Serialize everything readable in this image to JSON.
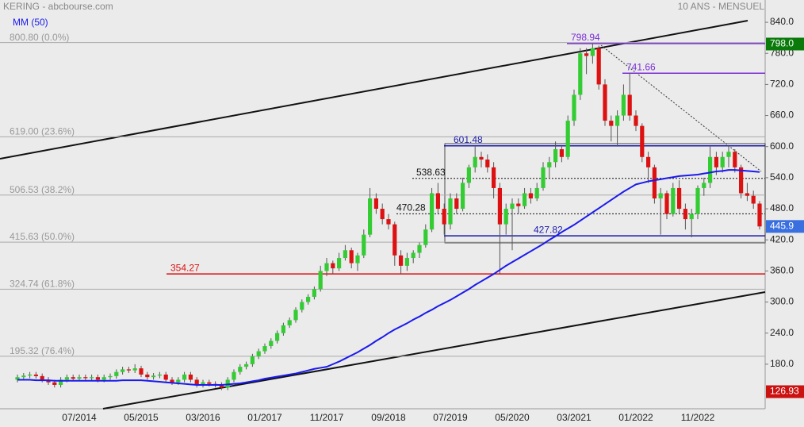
{
  "chart_data": {
    "type": "candlestick",
    "title": "KERING - abcbourse.com",
    "subtitle": "10 ANS - MENSUEL",
    "categories": [
      null,
      null,
      null,
      null,
      null,
      null,
      null,
      null,
      null,
      null,
      "07/2014",
      null,
      null,
      null,
      null,
      null,
      null,
      null,
      null,
      null,
      "05/2015",
      null,
      null,
      null,
      null,
      null,
      null,
      null,
      null,
      null,
      "03/2016",
      null,
      null,
      null,
      null,
      null,
      null,
      null,
      null,
      null,
      "01/2017",
      null,
      null,
      null,
      null,
      null,
      null,
      null,
      null,
      null,
      "11/2017",
      null,
      null,
      null,
      null,
      null,
      null,
      null,
      null,
      null,
      "09/2018",
      null,
      null,
      null,
      null,
      null,
      null,
      null,
      null,
      null,
      "07/2019",
      null,
      null,
      null,
      null,
      null,
      null,
      null,
      null,
      null,
      "05/2020",
      null,
      null,
      null,
      null,
      null,
      null,
      null,
      null,
      null,
      "03/2021",
      null,
      null,
      null,
      null,
      null,
      null,
      null,
      null,
      null,
      "01/2022",
      null,
      null,
      null,
      null,
      null,
      null,
      null,
      null,
      null,
      "11/2022",
      null,
      null,
      null,
      null,
      null,
      null,
      null,
      null,
      null,
      null
    ],
    "ohlc": [
      [
        150,
        160,
        145,
        155
      ],
      [
        155,
        163,
        150,
        158
      ],
      [
        158,
        165,
        153,
        160
      ],
      [
        160,
        165,
        152,
        157
      ],
      [
        157,
        162,
        145,
        150
      ],
      [
        150,
        155,
        140,
        145
      ],
      [
        145,
        150,
        135,
        140
      ],
      [
        140,
        155,
        135,
        150
      ],
      [
        150,
        160,
        145,
        155
      ],
      [
        155,
        160,
        147,
        152
      ],
      [
        152,
        160,
        147,
        155
      ],
      [
        155,
        160,
        148,
        153
      ],
      [
        153,
        160,
        148,
        155
      ],
      [
        155,
        160,
        145,
        150
      ],
      [
        150,
        160,
        145,
        155
      ],
      [
        155,
        162,
        150,
        157
      ],
      [
        157,
        170,
        152,
        165
      ],
      [
        165,
        175,
        160,
        170
      ],
      [
        170,
        175,
        163,
        168
      ],
      [
        168,
        180,
        163,
        172
      ],
      [
        172,
        177,
        155,
        160
      ],
      [
        160,
        165,
        150,
        155
      ],
      [
        155,
        163,
        150,
        158
      ],
      [
        158,
        165,
        153,
        160
      ],
      [
        160,
        165,
        145,
        150
      ],
      [
        150,
        155,
        140,
        145
      ],
      [
        145,
        155,
        140,
        150
      ],
      [
        150,
        165,
        145,
        160
      ],
      [
        160,
        165,
        145,
        150
      ],
      [
        150,
        155,
        135,
        140
      ],
      [
        140,
        150,
        135,
        145
      ],
      [
        145,
        150,
        137,
        142
      ],
      [
        142,
        147,
        135,
        140
      ],
      [
        140,
        145,
        130,
        135
      ],
      [
        135,
        155,
        130,
        150
      ],
      [
        150,
        170,
        145,
        165
      ],
      [
        165,
        180,
        160,
        175
      ],
      [
        175,
        185,
        170,
        180
      ],
      [
        180,
        200,
        175,
        195
      ],
      [
        195,
        210,
        190,
        205
      ],
      [
        205,
        220,
        200,
        215
      ],
      [
        215,
        230,
        210,
        225
      ],
      [
        225,
        245,
        220,
        240
      ],
      [
        240,
        260,
        235,
        255
      ],
      [
        255,
        270,
        250,
        265
      ],
      [
        265,
        290,
        260,
        285
      ],
      [
        285,
        305,
        280,
        300
      ],
      [
        300,
        315,
        295,
        310
      ],
      [
        310,
        330,
        305,
        325
      ],
      [
        325,
        370,
        320,
        360
      ],
      [
        360,
        385,
        350,
        375
      ],
      [
        375,
        380,
        355,
        365
      ],
      [
        365,
        395,
        360,
        385
      ],
      [
        385,
        410,
        380,
        400
      ],
      [
        400,
        405,
        365,
        375
      ],
      [
        375,
        395,
        360,
        390
      ],
      [
        390,
        440,
        385,
        430
      ],
      [
        430,
        520,
        425,
        500
      ],
      [
        500,
        510,
        470,
        480
      ],
      [
        480,
        490,
        450,
        460
      ],
      [
        460,
        470,
        440,
        450
      ],
      [
        450,
        455,
        370,
        390
      ],
      [
        390,
        400,
        355,
        370
      ],
      [
        370,
        395,
        360,
        385
      ],
      [
        385,
        400,
        375,
        395
      ],
      [
        395,
        415,
        385,
        410
      ],
      [
        410,
        450,
        405,
        440
      ],
      [
        440,
        520,
        435,
        510
      ],
      [
        510,
        530,
        470,
        480
      ],
      [
        480,
        490,
        430,
        450
      ],
      [
        450,
        510,
        440,
        500
      ],
      [
        500,
        510,
        470,
        480
      ],
      [
        480,
        540,
        475,
        530
      ],
      [
        530,
        565,
        520,
        560
      ],
      [
        560,
        600,
        550,
        580
      ],
      [
        580,
        590,
        560,
        575
      ],
      [
        575,
        585,
        550,
        560
      ],
      [
        560,
        570,
        500,
        520
      ],
      [
        520,
        530,
        355,
        450
      ],
      [
        450,
        490,
        430,
        480
      ],
      [
        480,
        500,
        400,
        490
      ],
      [
        490,
        500,
        470,
        485
      ],
      [
        485,
        520,
        480,
        510
      ],
      [
        510,
        520,
        490,
        500
      ],
      [
        500,
        530,
        495,
        520
      ],
      [
        520,
        570,
        515,
        560
      ],
      [
        560,
        580,
        540,
        570
      ],
      [
        570,
        610,
        560,
        595
      ],
      [
        595,
        600,
        570,
        580
      ],
      [
        580,
        660,
        575,
        650
      ],
      [
        650,
        710,
        640,
        700
      ],
      [
        700,
        790,
        690,
        780
      ],
      [
        780,
        790,
        740,
        775
      ],
      [
        775,
        799,
        760,
        790
      ],
      [
        790,
        795,
        710,
        720
      ],
      [
        720,
        730,
        640,
        650
      ],
      [
        650,
        660,
        610,
        640
      ],
      [
        640,
        670,
        600,
        660
      ],
      [
        660,
        720,
        650,
        700
      ],
      [
        700,
        742,
        650,
        660
      ],
      [
        660,
        670,
        630,
        640
      ],
      [
        640,
        645,
        570,
        580
      ],
      [
        580,
        590,
        530,
        560
      ],
      [
        560,
        565,
        490,
        500
      ],
      [
        500,
        520,
        430,
        510
      ],
      [
        510,
        515,
        460,
        470
      ],
      [
        470,
        530,
        465,
        520
      ],
      [
        520,
        535,
        470,
        480
      ],
      [
        480,
        490,
        440,
        460
      ],
      [
        460,
        480,
        425,
        470
      ],
      [
        470,
        525,
        460,
        520
      ],
      [
        520,
        540,
        505,
        530
      ],
      [
        530,
        600,
        520,
        580
      ],
      [
        580,
        590,
        545,
        560
      ],
      [
        560,
        590,
        550,
        580
      ],
      [
        580,
        602,
        560,
        590
      ],
      [
        590,
        595,
        550,
        560
      ],
      [
        560,
        565,
        500,
        510
      ],
      [
        510,
        530,
        495,
        505
      ],
      [
        505,
        515,
        480,
        490
      ],
      [
        490,
        495,
        440,
        445.9
      ]
    ],
    "up_color": "#33cc33",
    "down_color": "#dd1111",
    "series": [
      {
        "name": "MM (50)",
        "color": "#1a1aee",
        "values": [
          150,
          150,
          150,
          149,
          149,
          149,
          148,
          148,
          148,
          148,
          148,
          148,
          148,
          148,
          148,
          148,
          148,
          149,
          149,
          149,
          149,
          148,
          147,
          146,
          145,
          144,
          143,
          142,
          141,
          140,
          140,
          140,
          140,
          140,
          141,
          142,
          143,
          145,
          147,
          149,
          152,
          154,
          156,
          158,
          160,
          162,
          165,
          168,
          171,
          173,
          175,
          180,
          185,
          191,
          197,
          203,
          210,
          217,
          225,
          232,
          240,
          247,
          253,
          259,
          266,
          272,
          279,
          285,
          292,
          298,
          304,
          311,
          318,
          325,
          333,
          340,
          347,
          354,
          362,
          370,
          377,
          384,
          391,
          398,
          405,
          412,
          420,
          427,
          435,
          442,
          449,
          457,
          465,
          473,
          481,
          489,
          497,
          505,
          513,
          520,
          527,
          530,
          533,
          535,
          537,
          539,
          541,
          543,
          544,
          545,
          546,
          548,
          550,
          552,
          553,
          555,
          555,
          554,
          553,
          552,
          551
        ]
      }
    ],
    "ylim": [
      94,
      883
    ],
    "yticks": [
      {
        "value": 840,
        "label": "840.0"
      },
      {
        "value": 780,
        "label": "780.0"
      },
      {
        "value": 720,
        "label": "720.0"
      },
      {
        "value": 660,
        "label": "660.0"
      },
      {
        "value": 600,
        "label": "600.0"
      },
      {
        "value": 540,
        "label": "540.0"
      },
      {
        "value": 480,
        "label": "480.0"
      },
      {
        "value": 420,
        "label": "420.0"
      },
      {
        "value": 360,
        "label": "360.0"
      },
      {
        "value": 300,
        "label": "300.0"
      },
      {
        "value": 240,
        "label": "240.0"
      },
      {
        "value": 180,
        "label": "180.0"
      }
    ],
    "fib_levels": [
      {
        "value": 800.8,
        "label": "800.80 (0.0%)"
      },
      {
        "value": 619,
        "label": "619.00 (23.6%)"
      },
      {
        "value": 506.53,
        "label": "506.53 (38.2%)"
      },
      {
        "value": 415.63,
        "label": "415.63 (50.0%)"
      },
      {
        "value": 324.74,
        "label": "324.74 (61.8%)"
      },
      {
        "value": 195.32,
        "label": "195.32 (76.4%)"
      }
    ],
    "levels": [
      {
        "value": 798.94,
        "label": "798.94",
        "color": "#7b2fd6",
        "style": "solid"
      },
      {
        "value": 741.66,
        "label": "741.66",
        "color": "#7b2fd6",
        "style": "solid"
      },
      {
        "value": 601.48,
        "label": "601.48",
        "color": "#1a1aaa",
        "style": "solid"
      },
      {
        "value": 538.63,
        "label": "538.63",
        "color": "#111111",
        "style": "dotted"
      },
      {
        "value": 470.28,
        "label": "470.28",
        "color": "#111111",
        "style": "dotted"
      },
      {
        "value": 427.82,
        "label": "427.82",
        "color": "#1a1aaa",
        "style": "solid"
      },
      {
        "value": 354.27,
        "label": "354.27",
        "color": "#dd1111",
        "style": "solid"
      }
    ],
    "price_tags": [
      {
        "value": 798,
        "label": "798.0",
        "color": "#0a7a0a"
      },
      {
        "value": 445.9,
        "label": "445.9",
        "color": "#3a6fe0"
      },
      {
        "value": 126.93,
        "label": "126.93",
        "color": "#cc1111"
      }
    ]
  }
}
